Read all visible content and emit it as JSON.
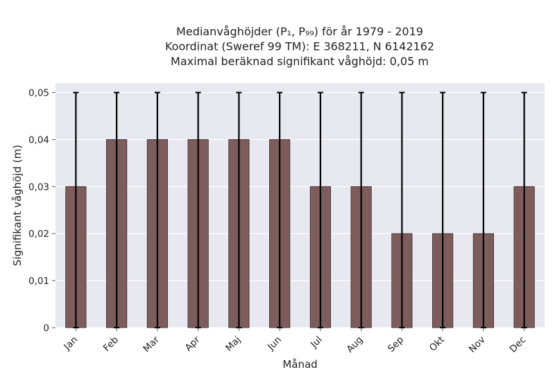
{
  "chart_data": {
    "type": "bar",
    "title_lines": [
      "Medianvåghöjder (P₁, P₉₉) för år 1979 - 2019",
      "Koordinat (Sweref 99 TM): E 368211, N 6142162",
      "Maximal beräknad signifikant våghöjd: 0,05 m"
    ],
    "xlabel": "Månad",
    "ylabel": "Signifikant våghöjd (m)",
    "categories": [
      "Jan",
      "Feb",
      "Mar",
      "Apr",
      "Maj",
      "Jun",
      "Jul",
      "Aug",
      "Sep",
      "Okt",
      "Nov",
      "Dec"
    ],
    "values": [
      0.03,
      0.04,
      0.04,
      0.04,
      0.04,
      0.04,
      0.03,
      0.03,
      0.02,
      0.02,
      0.02,
      0.03
    ],
    "error_low": [
      0,
      0,
      0,
      0,
      0,
      0,
      0,
      0,
      0,
      0,
      0,
      0
    ],
    "error_high": [
      0.05,
      0.05,
      0.05,
      0.05,
      0.05,
      0.05,
      0.05,
      0.05,
      0.05,
      0.05,
      0.05,
      0.05
    ],
    "ylim": [
      0,
      0.052
    ],
    "yticks": [
      0,
      0.01,
      0.02,
      0.03,
      0.04,
      0.05
    ],
    "ytick_labels": [
      "0",
      "0,01",
      "0,02",
      "0,03",
      "0,04",
      "0,05"
    ],
    "grid": true,
    "colors": {
      "bar_fill": "#7d5c5c",
      "bar_edge": "#3a2a2a",
      "plot_background": "#e8e8f0",
      "grid": "#ffffff",
      "error_bar": "#000000"
    }
  }
}
